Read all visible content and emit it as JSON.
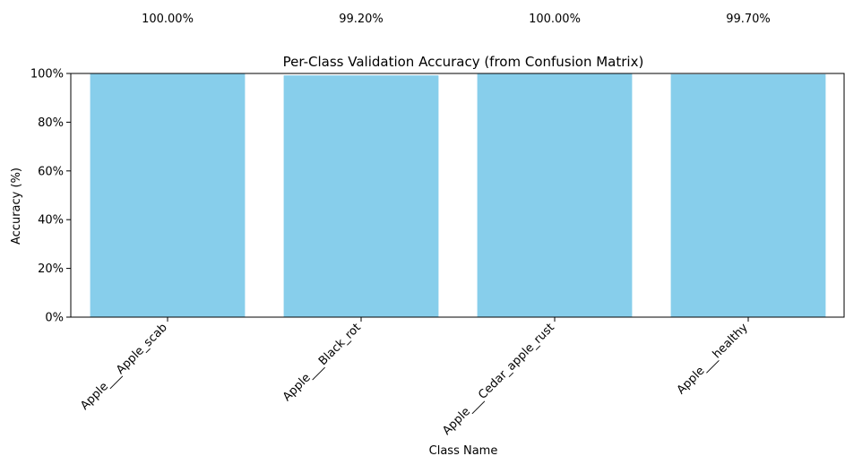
{
  "chart_data": {
    "type": "bar",
    "title": "Per-Class Validation Accuracy (from Confusion Matrix)",
    "xlabel": "Class Name",
    "ylabel": "Accuracy (%)",
    "categories": [
      "Apple___Apple_scab",
      "Apple___Black_rot",
      "Apple___Cedar_apple_rust",
      "Apple___healthy"
    ],
    "values": [
      100.0,
      99.2,
      100.0,
      99.7
    ],
    "data_labels": [
      "100.00%",
      "99.20%",
      "100.00%",
      "99.70%"
    ],
    "ylim": [
      0,
      100
    ],
    "yticks": [
      0,
      20,
      40,
      60,
      80,
      100
    ],
    "ytick_labels": [
      "0%",
      "20%",
      "40%",
      "60%",
      "80%",
      "100%"
    ],
    "bar_color": "#87ceeb",
    "grid": false,
    "legend": "none"
  }
}
